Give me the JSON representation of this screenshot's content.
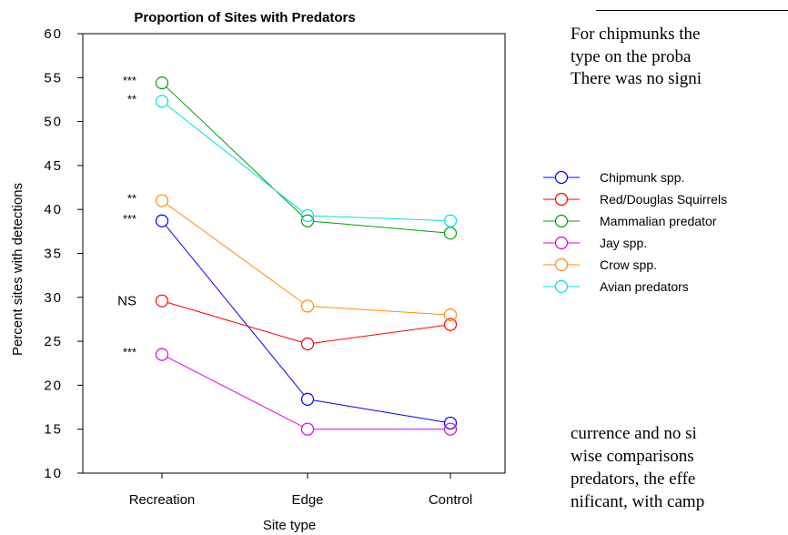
{
  "chart_data": {
    "type": "line",
    "title": "Proportion of Sites with Predators",
    "xlabel": "Site type",
    "ylabel": "Percent sites with detections",
    "categories": [
      "Recreation",
      "Edge",
      "Control"
    ],
    "ylim": [
      10,
      60
    ],
    "yticks": [
      10,
      15,
      20,
      25,
      30,
      35,
      40,
      45,
      50,
      55,
      60
    ],
    "legend_position": "right",
    "series": [
      {
        "name": "Chipmunk spp.",
        "color": "#0000ff",
        "values": [
          38.7,
          18.4,
          15.7
        ],
        "significance": "***"
      },
      {
        "name": "Red/Douglas Squirrels",
        "color": "#ff0000",
        "values": [
          29.6,
          24.7,
          26.9
        ],
        "significance": "NS"
      },
      {
        "name": "Mammalian predator",
        "color": "#00a000",
        "values": [
          54.4,
          38.7,
          37.3
        ],
        "significance": "***"
      },
      {
        "name": "Jay spp.",
        "color": "#e000e0",
        "values": [
          23.5,
          15.0,
          15.0
        ],
        "significance": "***"
      },
      {
        "name": "Crow spp.",
        "color": "#ff8c00",
        "values": [
          41.0,
          29.0,
          28.0
        ],
        "significance": "**"
      },
      {
        "name": "Avian predators",
        "color": "#00e0e0",
        "values": [
          52.3,
          39.3,
          38.7
        ],
        "significance": "**"
      }
    ]
  },
  "page_text": {
    "line1": "For chipmunks the",
    "line2": "type on the proba",
    "line3": "There was no signi",
    "line4": "currence and no si",
    "line5": "wise comparisons",
    "line6": "predators, the effe",
    "line7": "nificant, with camp"
  }
}
